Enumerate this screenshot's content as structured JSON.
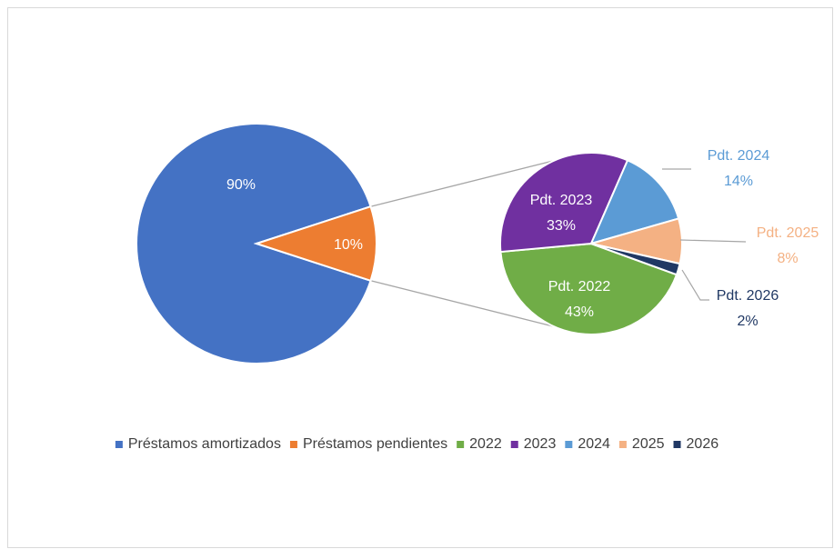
{
  "chart_data": {
    "type": "pie_of_pie",
    "categories": [
      "Préstamos amortizados",
      "Préstamos pendientes"
    ],
    "values": [
      90,
      10
    ],
    "value_labels": [
      "90%",
      "10%"
    ],
    "colors": [
      "#4472c4",
      "#ed7d31"
    ],
    "secondary": {
      "categories": [
        "2022",
        "2023",
        "2024",
        "2025",
        "2026"
      ],
      "data_labels": [
        "Pdt. 2022",
        "Pdt. 2023",
        "Pdt. 2024",
        "Pdt. 2025",
        "Pdt. 2026"
      ],
      "values": [
        43,
        33,
        14,
        8,
        2
      ],
      "value_labels": [
        "43%",
        "33%",
        "14%",
        "8%",
        "2%"
      ],
      "colors": [
        "#70ad47",
        "#7030a0",
        "#5b9bd5",
        "#f4b183",
        "#203864"
      ]
    },
    "legend": "bottom"
  }
}
